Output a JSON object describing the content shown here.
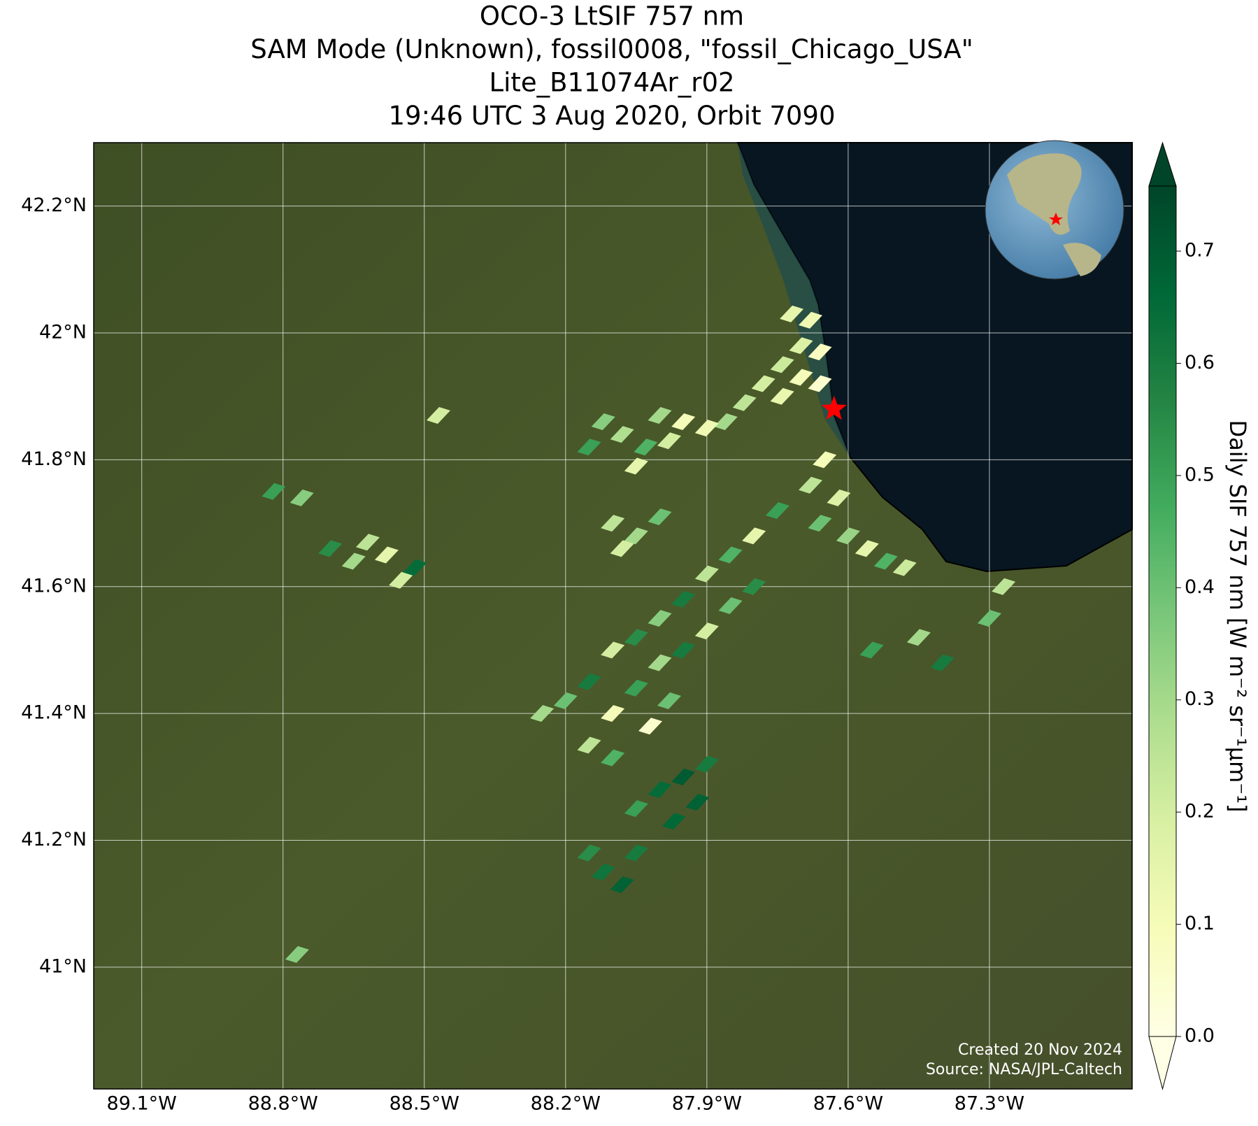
{
  "chart_data": {
    "type": "map",
    "title": [
      "OCO-3 LtSIF 757 nm",
      "SAM Mode (Unknown), fossil0008, \"fossil_Chicago_USA\"",
      "Lite_B11074Ar_r02",
      "19:46 UTC 3 Aug 2020, Orbit 7090"
    ],
    "xlim": [
      -89.202,
      -86.997
    ],
    "ylim": [
      40.808,
      42.3
    ],
    "xticks": [
      {
        "value": -89.1,
        "label": "89.1°W"
      },
      {
        "value": -88.8,
        "label": "88.8°W"
      },
      {
        "value": -88.5,
        "label": "88.5°W"
      },
      {
        "value": -88.2,
        "label": "88.2°W"
      },
      {
        "value": -87.9,
        "label": "87.9°W"
      },
      {
        "value": -87.6,
        "label": "87.6°W"
      },
      {
        "value": -87.3,
        "label": "87.3°W"
      }
    ],
    "yticks": [
      {
        "value": 41.0,
        "label": "41°N"
      },
      {
        "value": 41.2,
        "label": "41.2°N"
      },
      {
        "value": 41.4,
        "label": "41.4°N"
      },
      {
        "value": 41.6,
        "label": "41.6°N"
      },
      {
        "value": 41.8,
        "label": "41.8°N"
      },
      {
        "value": 42.0,
        "label": "42°N"
      },
      {
        "value": 42.2,
        "label": "42.2°N"
      }
    ],
    "grid": true,
    "lon": [
      -87.72,
      -87.68,
      -87.7,
      -87.66,
      -87.74,
      -87.7,
      -87.66,
      -87.78,
      -87.74,
      -87.82,
      -87.86,
      -87.9,
      -88.12,
      -88.08,
      -88.03,
      -87.98,
      -88.05,
      -88.15,
      -88.0,
      -87.95,
      -87.65,
      -87.68,
      -87.62,
      -87.66,
      -87.6,
      -87.56,
      -87.52,
      -87.48,
      -88.1,
      -88.05,
      -88.0,
      -88.08,
      -88.7,
      -88.65,
      -88.58,
      -88.52,
      -88.62,
      -88.55,
      -88.82,
      -88.76,
      -88.2,
      -88.15,
      -88.25,
      -88.1,
      -88.05,
      -88.0,
      -87.95,
      -87.9,
      -87.85,
      -87.8,
      -87.75,
      -88.1,
      -88.05,
      -88.0,
      -87.95,
      -87.9,
      -87.85,
      -87.8,
      -88.15,
      -88.1,
      -88.02,
      -87.98,
      -88.0,
      -87.95,
      -87.9,
      -87.92,
      -88.05,
      -87.97,
      -88.12,
      -88.08,
      -88.15,
      -88.05,
      -87.55,
      -87.45,
      -87.4,
      -87.3,
      -87.27,
      -88.77,
      -88.47
    ],
    "lat": [
      42.03,
      42.02,
      41.98,
      41.97,
      41.95,
      41.93,
      41.92,
      41.92,
      41.9,
      41.89,
      41.86,
      41.85,
      41.86,
      41.84,
      41.82,
      41.83,
      41.79,
      41.82,
      41.87,
      41.86,
      41.8,
      41.76,
      41.74,
      41.7,
      41.68,
      41.66,
      41.64,
      41.63,
      41.7,
      41.68,
      41.71,
      41.66,
      41.66,
      41.64,
      41.65,
      41.63,
      41.67,
      41.61,
      41.75,
      41.74,
      41.42,
      41.45,
      41.4,
      41.5,
      41.52,
      41.55,
      41.58,
      41.62,
      41.65,
      41.68,
      41.72,
      41.4,
      41.44,
      41.48,
      41.5,
      41.53,
      41.57,
      41.6,
      41.35,
      41.33,
      41.38,
      41.42,
      41.28,
      41.3,
      41.32,
      41.26,
      41.25,
      41.23,
      41.15,
      41.13,
      41.18,
      41.18,
      41.5,
      41.52,
      41.48,
      41.55,
      41.6,
      41.02,
      41.87
    ],
    "values": [
      0.15,
      0.12,
      0.18,
      0.08,
      0.22,
      0.1,
      0.05,
      0.2,
      0.14,
      0.25,
      0.3,
      0.12,
      0.35,
      0.28,
      0.45,
      0.2,
      0.15,
      0.5,
      0.3,
      0.1,
      0.1,
      0.25,
      0.18,
      0.4,
      0.32,
      0.15,
      0.45,
      0.22,
      0.25,
      0.3,
      0.4,
      0.2,
      0.55,
      0.3,
      0.15,
      0.65,
      0.25,
      0.2,
      0.5,
      0.35,
      0.4,
      0.6,
      0.3,
      0.2,
      0.55,
      0.35,
      0.6,
      0.25,
      0.45,
      0.15,
      0.5,
      0.1,
      0.5,
      0.3,
      0.6,
      0.2,
      0.4,
      0.55,
      0.25,
      0.45,
      0.05,
      0.4,
      0.65,
      0.7,
      0.6,
      0.68,
      0.5,
      0.66,
      0.62,
      0.68,
      0.55,
      0.6,
      0.5,
      0.3,
      0.6,
      0.4,
      0.25,
      0.35,
      0.2
    ],
    "target": {
      "lon": -87.63,
      "lat": 41.88,
      "color": "#ff0000"
    },
    "colormap": [
      "#ffffe5",
      "#f7fcb9",
      "#d9f0a3",
      "#addd8e",
      "#78c679",
      "#41ab5d",
      "#238443",
      "#006837",
      "#004529"
    ],
    "clim": [
      0,
      0.758
    ],
    "cticks": [
      {
        "value": 0,
        "label": "0.0"
      },
      0.1,
      0.2,
      0.3,
      0.4,
      0.5,
      0.6,
      0.7
    ],
    "colorbar_label": "Daily SIF 757 nm [W m⁻² sr⁻¹μm⁻¹]",
    "credits": [
      "Created 20 Nov 2024",
      "Source: NASA/JPL-Caltech"
    ]
  }
}
